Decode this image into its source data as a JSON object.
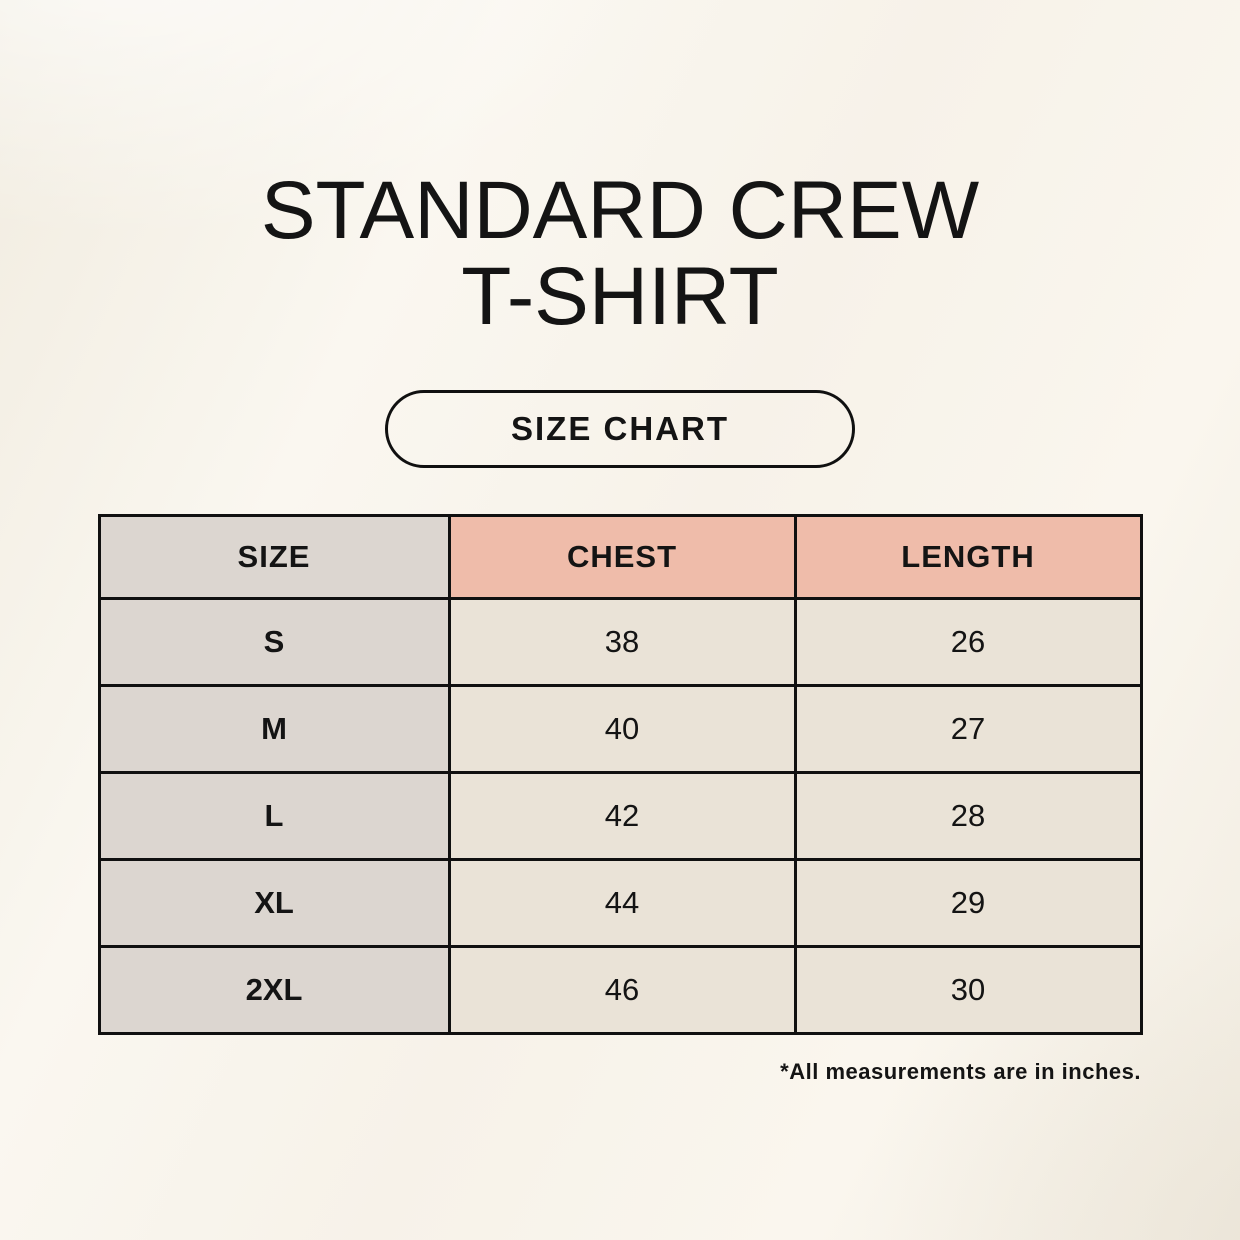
{
  "header": {
    "title_line1": "STANDARD CREW",
    "title_line2": "T-SHIRT",
    "size_chart_button_label": "SIZE CHART"
  },
  "footnote": {
    "text": "*All measurements are in inches."
  },
  "colors": {
    "background": "#f8f4ec",
    "table_header_accent": "#efbcaa",
    "size_column_fill": "#dcd6d0",
    "value_cell_fill": "#eae3d7",
    "table_border": "#101010",
    "text": "#141414"
  },
  "chart_data": {
    "type": "table",
    "title": "STANDARD CREW T-SHIRT",
    "subtitle": "SIZE CHART",
    "columns": [
      "SIZE",
      "CHEST",
      "LENGTH"
    ],
    "rows": [
      {
        "size": "S",
        "chest": "38",
        "length": "26"
      },
      {
        "size": "M",
        "chest": "40",
        "length": "27"
      },
      {
        "size": "L",
        "chest": "42",
        "length": "28"
      },
      {
        "size": "XL",
        "chest": "44",
        "length": "29"
      },
      {
        "size": "2XL",
        "chest": "46",
        "length": "30"
      }
    ],
    "units": "inches",
    "note": "*All measurements are in inches."
  }
}
